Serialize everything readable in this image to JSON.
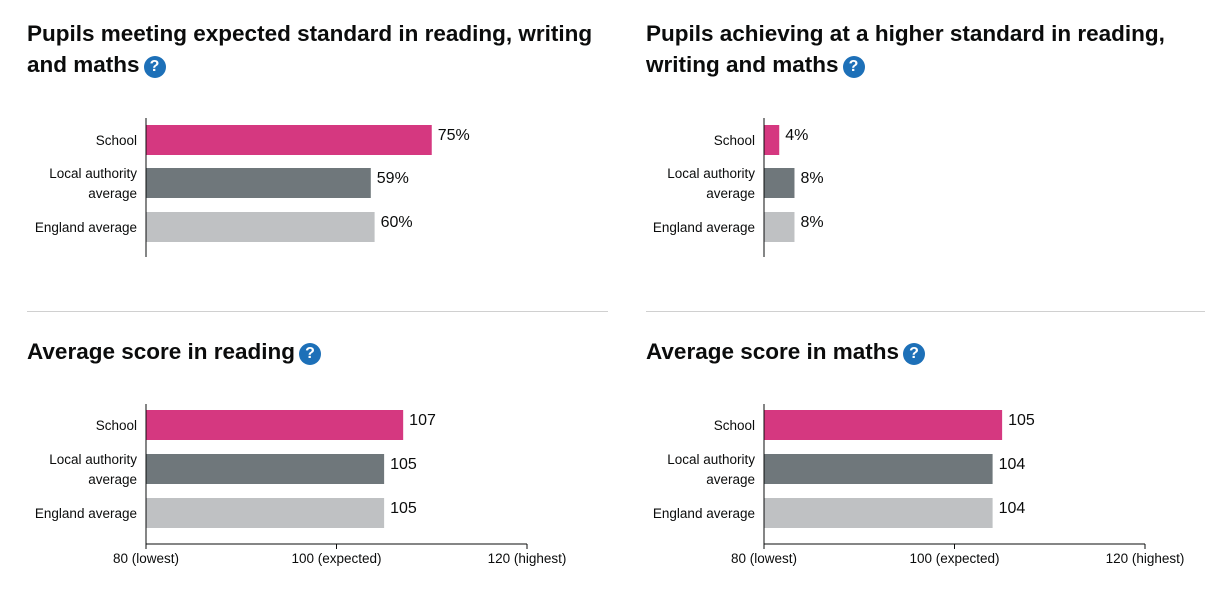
{
  "help_icon": "question-mark-icon",
  "colors": {
    "school": "#d53880",
    "local_authority": "#6f777b",
    "england": "#bfc1c3",
    "help_icon": "#1d70b8",
    "axis": "#0b0c0c"
  },
  "panels": [
    {
      "title": "Pupils meeting expected standard in reading, writing and maths"
    },
    {
      "title": "Pupils achieving at a higher standard in reading, writing and maths"
    },
    {
      "title": "Average score in reading"
    },
    {
      "title": "Average score in maths"
    }
  ],
  "chart_data": [
    {
      "type": "bar",
      "orientation": "horizontal",
      "title": "Pupils meeting expected standard in reading, writing and maths",
      "categories": [
        "School",
        "Local authority average",
        "England average"
      ],
      "values": [
        75,
        59,
        60
      ],
      "value_labels": [
        "75%",
        "59%",
        "60%"
      ],
      "xlim": [
        0,
        100
      ]
    },
    {
      "type": "bar",
      "orientation": "horizontal",
      "title": "Pupils achieving at a higher standard in reading, writing and maths",
      "categories": [
        "School",
        "Local authority average",
        "England average"
      ],
      "values": [
        4,
        8,
        8
      ],
      "value_labels": [
        "4%",
        "8%",
        "8%"
      ],
      "xlim": [
        0,
        100
      ]
    },
    {
      "type": "bar",
      "orientation": "horizontal",
      "title": "Average score in reading",
      "categories": [
        "School",
        "Local authority average",
        "England average"
      ],
      "values": [
        107,
        105,
        105
      ],
      "value_labels": [
        "107",
        "105",
        "105"
      ],
      "xlim": [
        80,
        120
      ],
      "ticks": [
        80,
        100,
        120
      ],
      "tick_labels": [
        "80 (lowest)",
        "100 (expected)",
        "120 (highest)"
      ]
    },
    {
      "type": "bar",
      "orientation": "horizontal",
      "title": "Average score in maths",
      "categories": [
        "School",
        "Local authority average",
        "England average"
      ],
      "values": [
        105,
        104,
        104
      ],
      "value_labels": [
        "105",
        "104",
        "104"
      ],
      "xlim": [
        80,
        120
      ],
      "ticks": [
        80,
        100,
        120
      ],
      "tick_labels": [
        "80 (lowest)",
        "100 (expected)",
        "120 (highest)"
      ]
    }
  ]
}
